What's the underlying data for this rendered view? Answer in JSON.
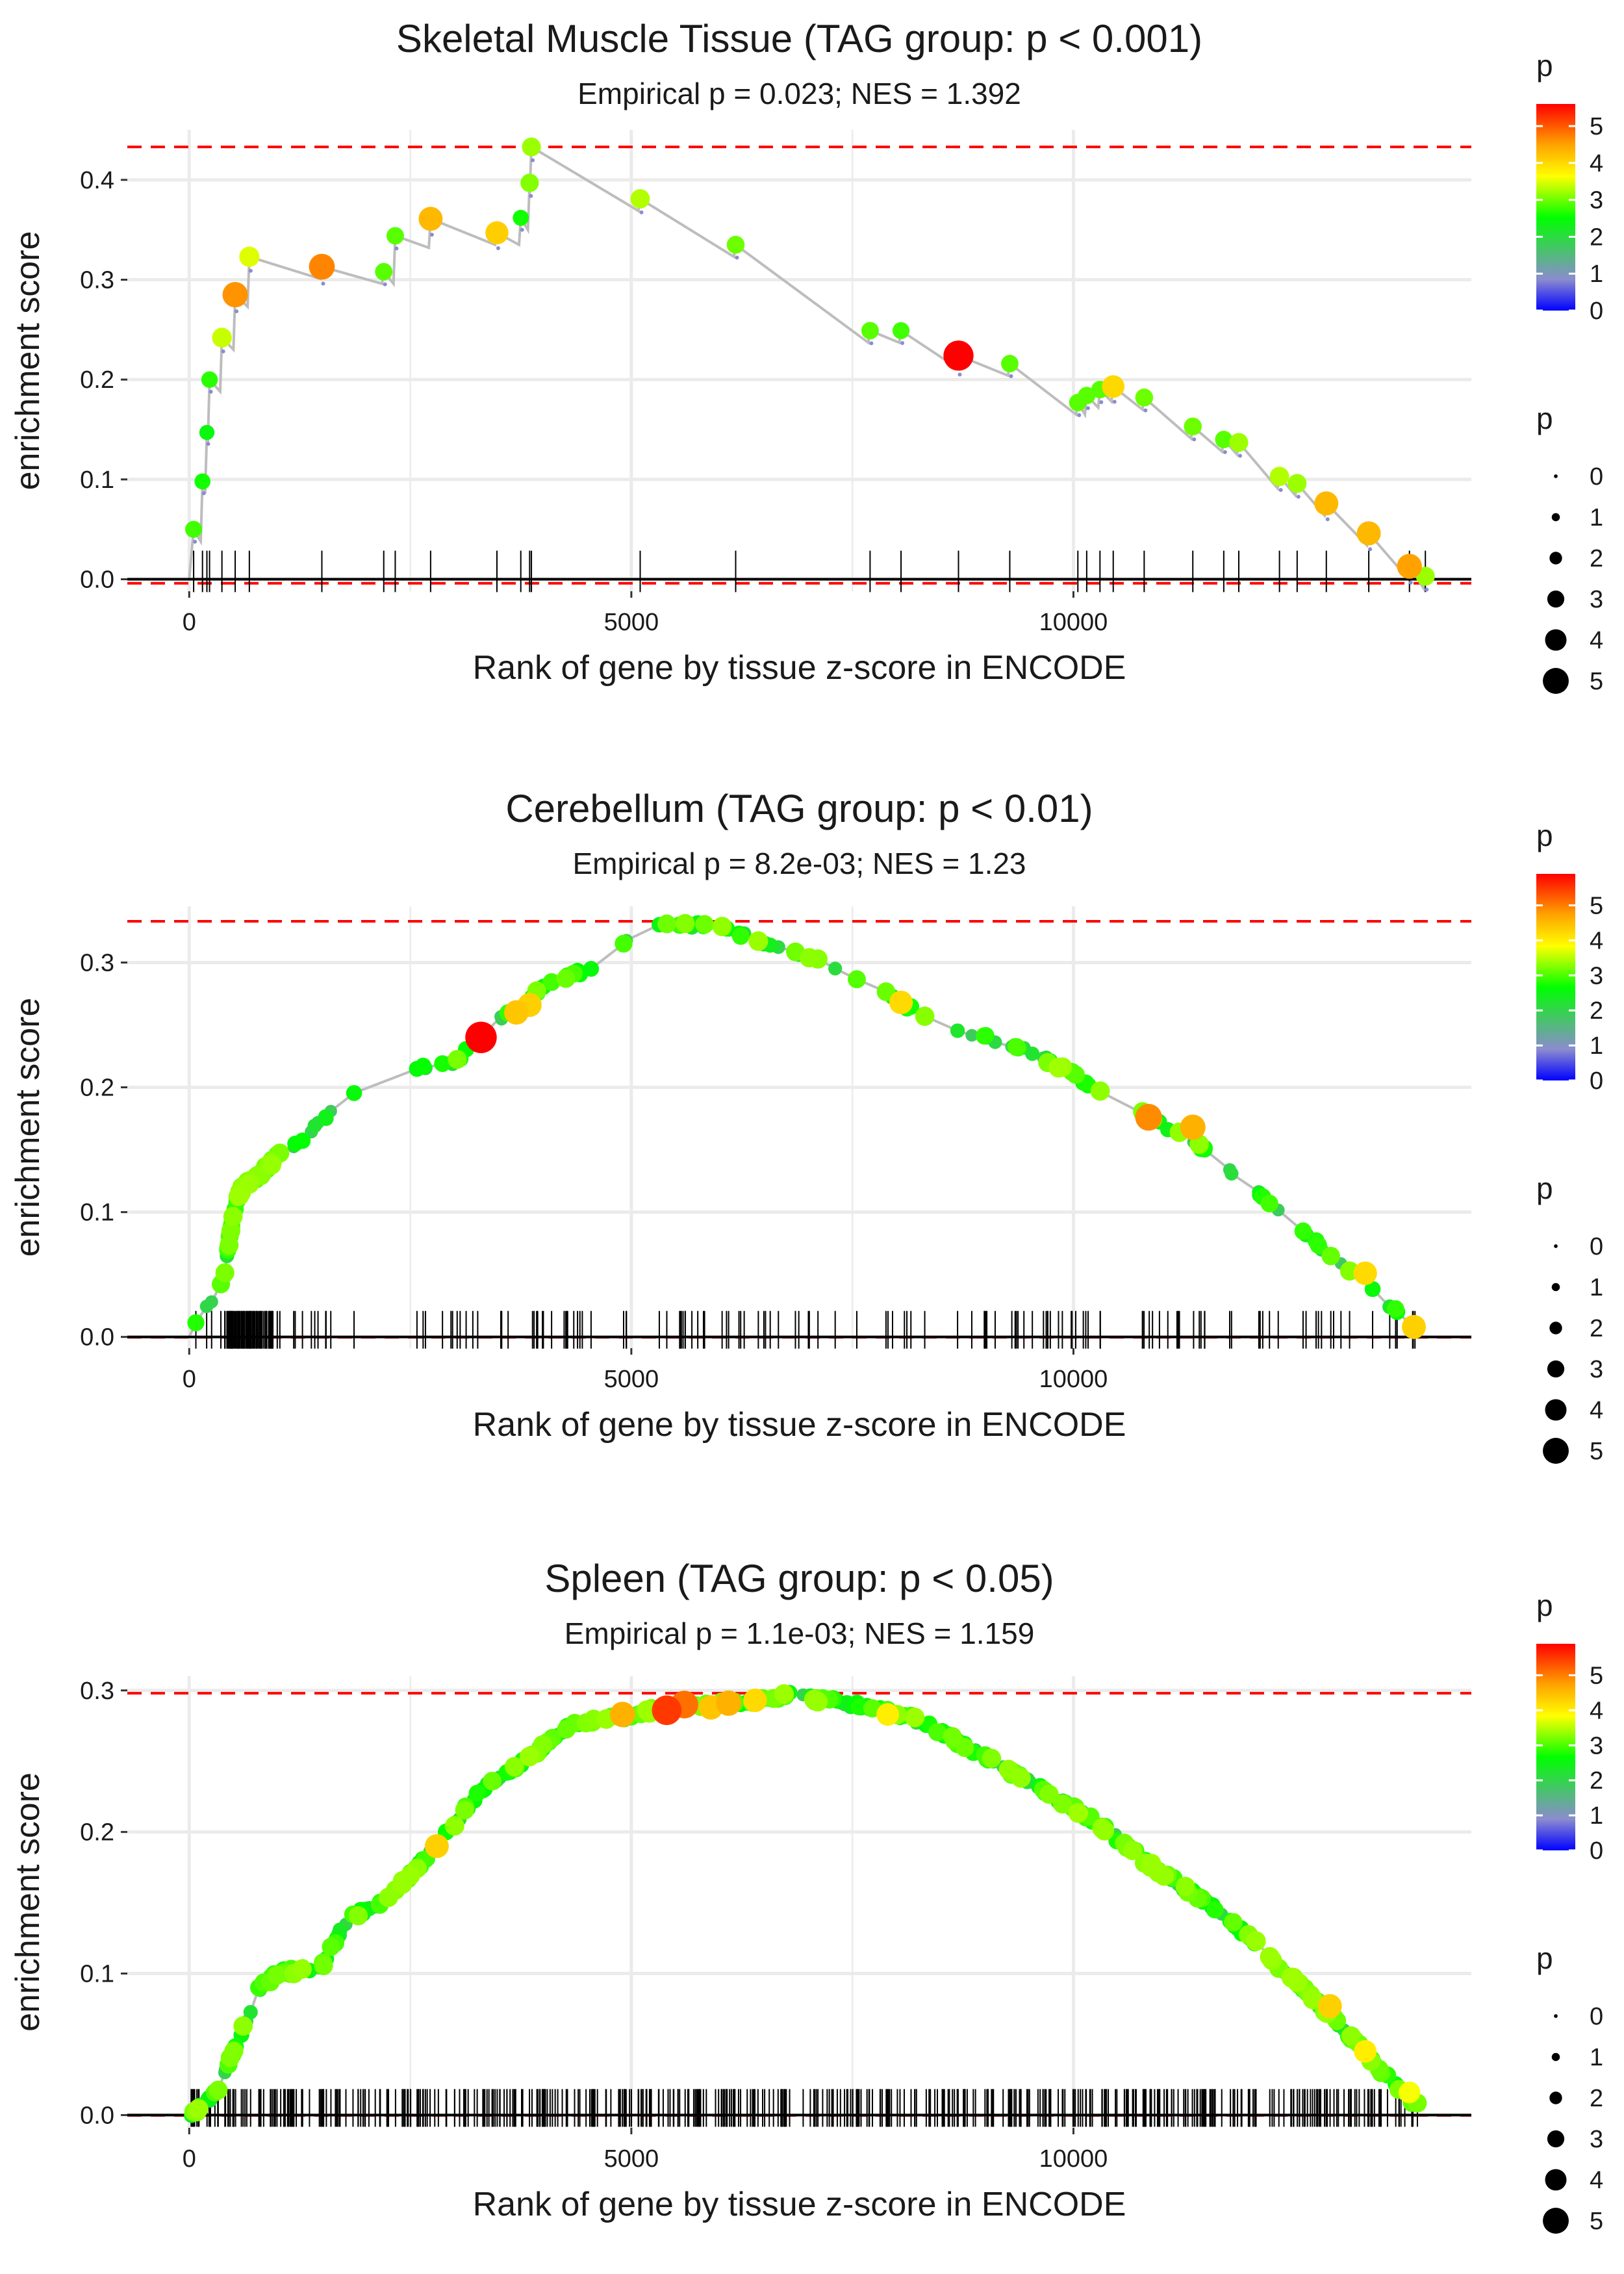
{
  "legend_title": "p",
  "legend_ticks": [
    "0",
    "1",
    "2",
    "3",
    "4",
    "5"
  ],
  "x_label": "Rank of gene by tissue z-score in ENCODE",
  "y_label": "enrichment score",
  "colors": {
    "color_scale": [
      "#0000ff",
      "#8b8bcf",
      "#00ff00",
      "#ffff00",
      "#ffa500",
      "#ff0000"
    ],
    "curve": "#bdbdbd",
    "threshold_line": "#ff0000",
    "rug": "#000000",
    "grid": "#ebebeb"
  },
  "chart_data": [
    {
      "type": "scatter",
      "title": "Skeletal Muscle Tissue (TAG group: p < 0.001)",
      "subtitle": "Empirical p = 0.023; NES = 1.392",
      "xlim": [
        -700,
        14500
      ],
      "ylim": [
        -0.012,
        0.45
      ],
      "x_ticks": [
        0,
        5000,
        10000
      ],
      "x_tick_labels": [
        "0",
        "5000",
        "10000"
      ],
      "y_ticks": [
        0.0,
        0.1,
        0.2,
        0.3,
        0.4
      ],
      "y_tick_labels": [
        "0.0",
        "0.1",
        "0.2",
        "0.3",
        "0.4"
      ],
      "max_es": 0.433,
      "min_es": -0.004,
      "color_max": 5.6,
      "sparse": true,
      "points": [
        [
          50,
          0.05,
          2.8
        ],
        [
          150,
          0.098,
          2.6
        ],
        [
          200,
          0.147,
          2.4
        ],
        [
          230,
          0.2,
          2.7
        ],
        [
          370,
          0.242,
          3.4
        ],
        [
          520,
          0.285,
          4.6
        ],
        [
          680,
          0.323,
          3.5
        ],
        [
          1500,
          0.313,
          4.7
        ],
        [
          2200,
          0.308,
          2.9
        ],
        [
          2330,
          0.344,
          2.9
        ],
        [
          2730,
          0.361,
          4.3
        ],
        [
          3480,
          0.347,
          4.1
        ],
        [
          3750,
          0.362,
          2.6
        ],
        [
          3850,
          0.397,
          3.1
        ],
        [
          3870,
          0.433,
          3.2
        ],
        [
          5100,
          0.381,
          3.3
        ],
        [
          6180,
          0.335,
          3.0
        ],
        [
          7700,
          0.249,
          2.9
        ],
        [
          8050,
          0.249,
          2.8
        ],
        [
          8700,
          0.224,
          5.6
        ],
        [
          9280,
          0.216,
          2.9
        ],
        [
          10050,
          0.177,
          2.9
        ],
        [
          10150,
          0.184,
          2.9
        ],
        [
          10300,
          0.19,
          2.9
        ],
        [
          10450,
          0.193,
          4.0
        ],
        [
          10800,
          0.182,
          3.0
        ],
        [
          11350,
          0.153,
          3.0
        ],
        [
          11700,
          0.14,
          2.9
        ],
        [
          11870,
          0.137,
          3.2
        ],
        [
          12330,
          0.103,
          3.3
        ],
        [
          12530,
          0.096,
          3.2
        ],
        [
          12860,
          0.076,
          4.3
        ],
        [
          13340,
          0.046,
          4.3
        ],
        [
          13800,
          0.013,
          4.5
        ],
        [
          13980,
          0.003,
          3.2
        ]
      ]
    },
    {
      "type": "scatter",
      "title": "Cerebellum (TAG group: p < 0.01)",
      "subtitle": "Empirical p = 8.2e-03; NES = 1.23",
      "xlim": [
        -700,
        14500
      ],
      "ylim": [
        -0.009,
        0.345
      ],
      "x_ticks": [
        0,
        5000,
        10000
      ],
      "x_tick_labels": [
        "0",
        "5000",
        "10000"
      ],
      "y_ticks": [
        0.0,
        0.1,
        0.2,
        0.3
      ],
      "y_tick_labels": [
        "0.0",
        "0.1",
        "0.2",
        "0.3"
      ],
      "max_es": 0.333,
      "min_es": 0,
      "color_max": 5.9,
      "density": 230,
      "curve": [
        [
          0,
          0
        ],
        [
          150,
          0.02
        ],
        [
          300,
          0.03
        ],
        [
          400,
          0.05
        ],
        [
          500,
          0.1
        ],
        [
          600,
          0.12
        ],
        [
          800,
          0.13
        ],
        [
          1000,
          0.145
        ],
        [
          1300,
          0.16
        ],
        [
          1600,
          0.18
        ],
        [
          2000,
          0.205
        ],
        [
          2500,
          0.215
        ],
        [
          3000,
          0.22
        ],
        [
          3300,
          0.24
        ],
        [
          3600,
          0.26
        ],
        [
          4000,
          0.28
        ],
        [
          4500,
          0.295
        ],
        [
          4800,
          0.305
        ],
        [
          5000,
          0.325
        ],
        [
          5300,
          0.33
        ],
        [
          6000,
          0.33
        ],
        [
          6500,
          0.315
        ],
        [
          7000,
          0.305
        ],
        [
          7500,
          0.29
        ],
        [
          8000,
          0.27
        ],
        [
          8500,
          0.25
        ],
        [
          9000,
          0.24
        ],
        [
          9500,
          0.23
        ],
        [
          10000,
          0.21
        ],
        [
          10500,
          0.19
        ],
        [
          11000,
          0.17
        ],
        [
          11500,
          0.15
        ],
        [
          12000,
          0.12
        ],
        [
          12500,
          0.09
        ],
        [
          13000,
          0.06
        ],
        [
          13500,
          0.03
        ],
        [
          13900,
          0.005
        ]
      ],
      "highlights": [
        [
          3300,
          0.24,
          5.9
        ],
        [
          3700,
          0.26,
          4.4
        ],
        [
          3850,
          0.266,
          4.3
        ],
        [
          8050,
          0.268,
          4.2
        ],
        [
          10850,
          0.176,
          4.9
        ],
        [
          11350,
          0.168,
          4.6
        ],
        [
          13300,
          0.051,
          4.2
        ],
        [
          13850,
          0.008,
          4.3
        ]
      ]
    },
    {
      "type": "scatter",
      "title": "Spleen (TAG group: p < 0.05)",
      "subtitle": "Empirical p = 1.1e-03; NES = 1.159",
      "xlim": [
        -700,
        14500
      ],
      "ylim": [
        -0.009,
        0.31
      ],
      "x_ticks": [
        0,
        5000,
        10000
      ],
      "x_tick_labels": [
        "0",
        "5000",
        "10000"
      ],
      "y_ticks": [
        0.0,
        0.1,
        0.2,
        0.3
      ],
      "y_tick_labels": [
        "0.0",
        "0.1",
        "0.2",
        "0.3"
      ],
      "max_es": 0.298,
      "min_es": 0,
      "color_max": 5.9,
      "density": 520,
      "curve": [
        [
          0,
          0
        ],
        [
          300,
          0.015
        ],
        [
          600,
          0.06
        ],
        [
          800,
          0.09
        ],
        [
          1000,
          0.1
        ],
        [
          1500,
          0.105
        ],
        [
          1800,
          0.14
        ],
        [
          2200,
          0.15
        ],
        [
          2800,
          0.19
        ],
        [
          3300,
          0.23
        ],
        [
          3800,
          0.25
        ],
        [
          4300,
          0.275
        ],
        [
          5000,
          0.283
        ],
        [
          5500,
          0.288
        ],
        [
          6000,
          0.29
        ],
        [
          6800,
          0.297
        ],
        [
          7500,
          0.29
        ],
        [
          8200,
          0.28
        ],
        [
          8800,
          0.26
        ],
        [
          9500,
          0.235
        ],
        [
          10200,
          0.21
        ],
        [
          10800,
          0.18
        ],
        [
          11500,
          0.15
        ],
        [
          12000,
          0.125
        ],
        [
          12500,
          0.095
        ],
        [
          13000,
          0.065
        ],
        [
          13500,
          0.03
        ],
        [
          13900,
          0.006
        ]
      ],
      "highlights": [
        [
          2800,
          0.19,
          4.3
        ],
        [
          4900,
          0.283,
          4.6
        ],
        [
          5400,
          0.286,
          5.5
        ],
        [
          5600,
          0.29,
          5.1
        ],
        [
          5900,
          0.288,
          4.4
        ],
        [
          6100,
          0.291,
          4.6
        ],
        [
          6400,
          0.293,
          4.2
        ],
        [
          7900,
          0.283,
          4.0
        ],
        [
          12900,
          0.077,
          4.3
        ],
        [
          13300,
          0.045,
          4.0
        ],
        [
          13800,
          0.016,
          3.8
        ]
      ]
    }
  ]
}
